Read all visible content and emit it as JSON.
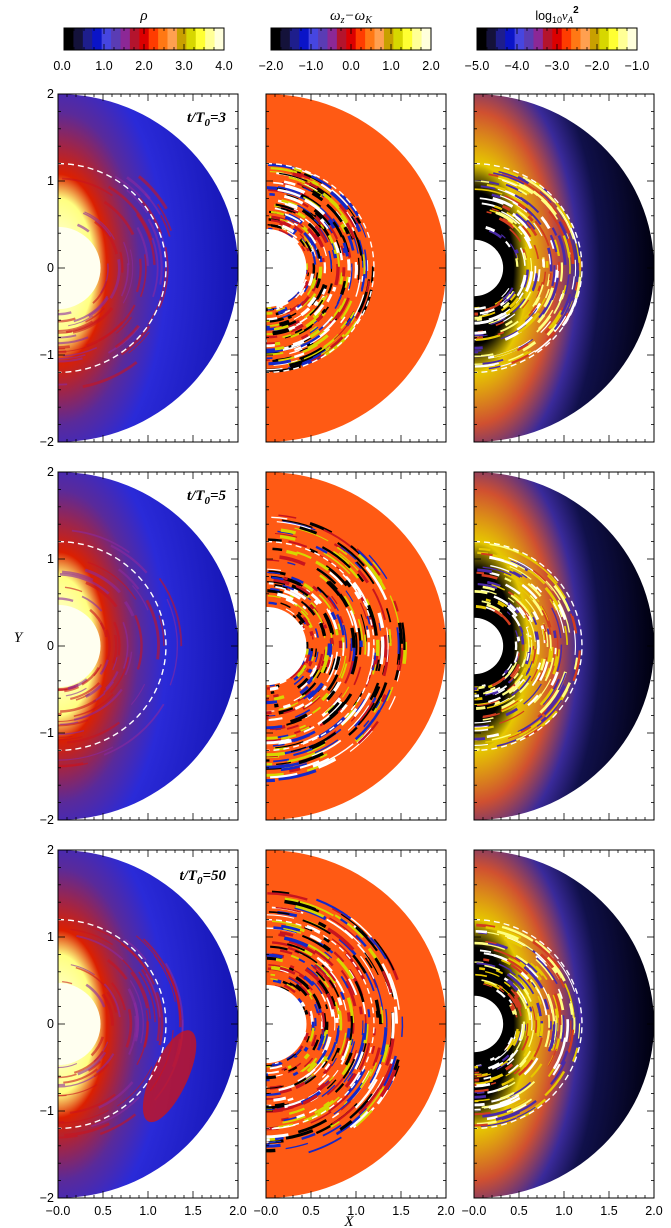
{
  "figure": {
    "colorbars": [
      {
        "title": "ρ",
        "ticks": [
          "0.0",
          "1.0",
          "2.0",
          "3.0",
          "4.0"
        ]
      },
      {
        "title": "ω",
        "title_sub1": "z",
        "title_mid": "−ω",
        "title_sub2": "K",
        "ticks": [
          "−2.0",
          "−1.0",
          "0.0",
          "1.0",
          "2.0"
        ]
      },
      {
        "title": "log",
        "title_sub1": "10",
        "title_mid": "v",
        "title_sub2": "A",
        "title_sup": "2",
        "ticks": [
          "−5.0",
          "−4.0",
          "−3.0",
          "−2.0",
          "−1.0"
        ]
      }
    ],
    "colorbar_palette": [
      "#000000",
      "#14123a",
      "#1e1e8c",
      "#0a14c8",
      "#4646e0",
      "#5a3cb4",
      "#8c2896",
      "#b4142d",
      "#dc0000",
      "#ff3c00",
      "#ff7814",
      "#ffa050",
      "#c8a000",
      "#d7d700",
      "#ffff32",
      "#ffff96",
      "#ffffdc"
    ],
    "rows": [
      {
        "label": "t/T",
        "label_sub": "0",
        "label_value": "=3"
      },
      {
        "label": "t/T",
        "label_sub": "0",
        "label_value": "=5"
      },
      {
        "label": "t/T",
        "label_sub": "0",
        "label_value": "=50"
      }
    ],
    "panel_axes": {
      "xlim": [
        0.0,
        2.0
      ],
      "ylim": [
        -2.0,
        2.0
      ],
      "x_ticks": [
        "−0.0",
        "0.5",
        "1.0",
        "1.5",
        "2.0"
      ],
      "y_ticks": [
        "2",
        "1",
        "0",
        "−1",
        "−2"
      ],
      "xlabel": "X",
      "ylabel": "Y"
    },
    "geometry": {
      "inner_radius": 0.45,
      "outer_radius": 2.0,
      "dashed_radius": 1.2
    },
    "field_colors": {
      "rho": {
        "background": "#1a1ad2",
        "inner": "#fffff0",
        "mid": "#c8141e"
      },
      "vort": {
        "background": "#ff5a14",
        "turbulent": [
          "#000000",
          "#1428c8",
          "#ffffff",
          "#d7d700",
          "#c8141e"
        ]
      },
      "valf": {
        "background": "#0a0a28",
        "mid": "#e6c800",
        "inner": "#000000"
      }
    }
  }
}
